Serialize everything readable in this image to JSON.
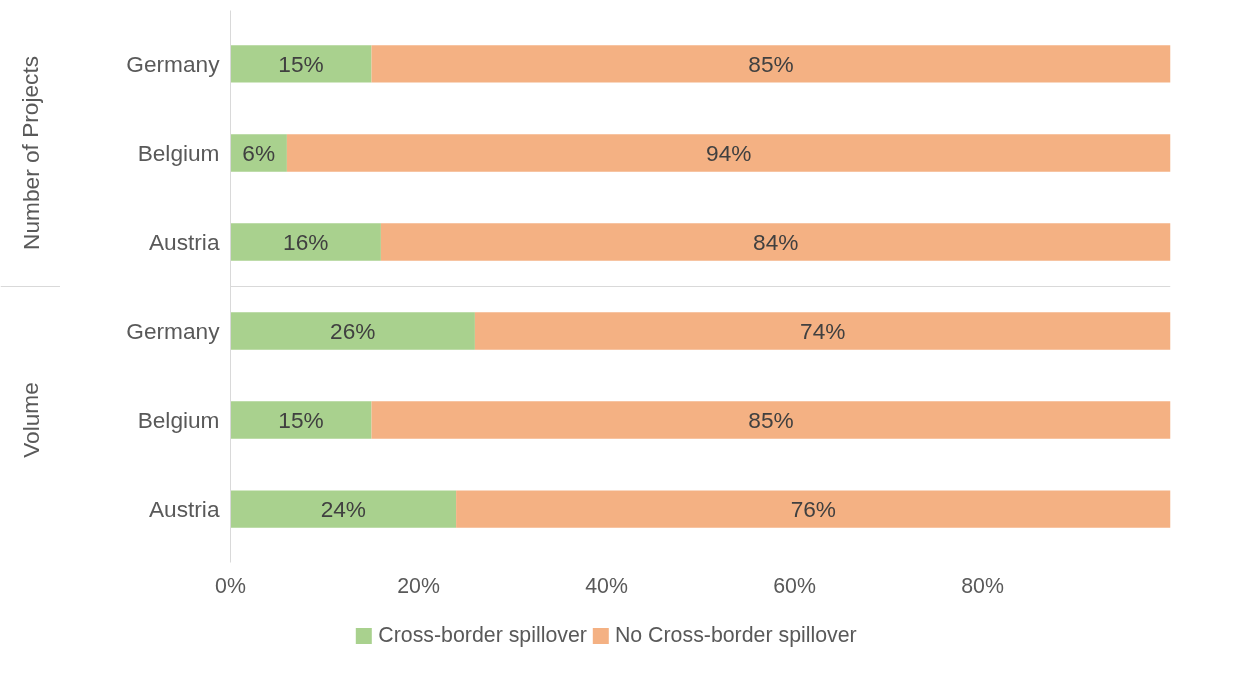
{
  "chart_data": {
    "type": "bar",
    "orientation": "horizontal",
    "stacked": true,
    "categories": [
      "Germany",
      "Belgium",
      "Austria",
      "Germany",
      "Belgium",
      "Austria"
    ],
    "series": [
      {
        "name": "Cross-border spillover",
        "color": "#a9d18e",
        "values": [
          15,
          6,
          16,
          26,
          15,
          24
        ],
        "value_labels": [
          "15%",
          "6%",
          "16%",
          "26%",
          "15%",
          "24%"
        ]
      },
      {
        "name": "No Cross-border spillover",
        "color": "#f4b183",
        "values": [
          85,
          94,
          84,
          74,
          85,
          76
        ],
        "value_labels": [
          "85%",
          "94%",
          "84%",
          "74%",
          "85%",
          "76%"
        ]
      }
    ],
    "xlim": [
      0,
      100
    ],
    "xticks": [
      {
        "value": 0,
        "label": "0%"
      },
      {
        "value": 20,
        "label": "20%"
      },
      {
        "value": 40,
        "label": "40%"
      },
      {
        "value": 60,
        "label": "60%"
      },
      {
        "value": 80,
        "label": "80%"
      }
    ],
    "annotations": [
      "Number of Projects",
      "Volume"
    ],
    "legend": "bottom",
    "grid": false
  }
}
